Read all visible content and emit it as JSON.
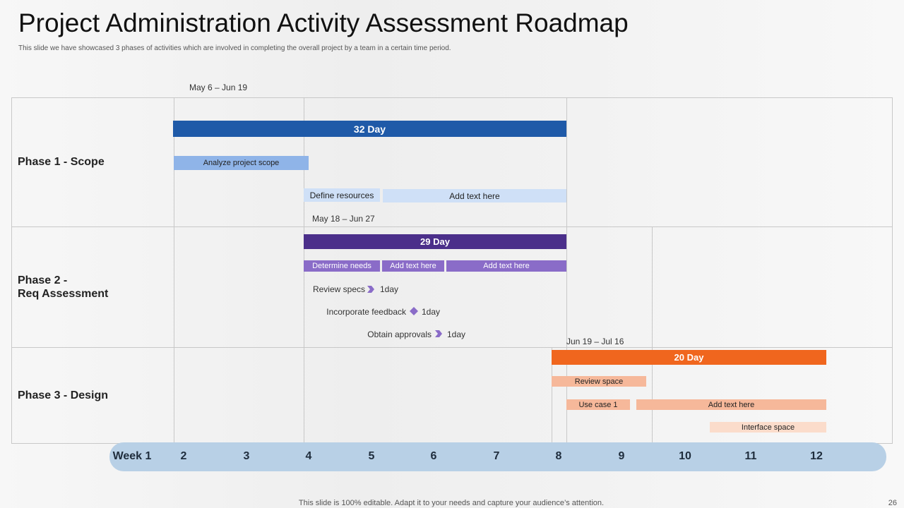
{
  "header": {
    "title": "Project Administration Activity Assessment Roadmap",
    "subtitle": "This slide we have showcased 3 phases of activities which are involved in completing the overall project by a team in a certain time period."
  },
  "phases": [
    {
      "label": [
        "Phase 1 - Scope"
      ],
      "date_range": "May 6 – Jun 19",
      "duration": "32 Day",
      "tasks": [
        "Analyze project scope",
        "Define resources",
        "Add text here"
      ]
    },
    {
      "label": [
        "Phase 2 -",
        "Req Assessment"
      ],
      "date_range": "May 18 – Jun 27",
      "duration": "29 Day",
      "tasks": [
        "Determine needs",
        "Add text here",
        "Add text here"
      ],
      "milestones": [
        {
          "label": "Review specs",
          "duration": "1day"
        },
        {
          "label": "Incorporate feedback",
          "duration": "1day"
        },
        {
          "label": "Obtain approvals",
          "duration": "1day"
        }
      ]
    },
    {
      "label": [
        "Phase 3 - Design"
      ],
      "date_range": "Jun 19 – Jul 16",
      "duration": "20 Day",
      "tasks": [
        "Review space",
        "Use case 1",
        "Add text here",
        "Interface space"
      ]
    }
  ],
  "timeline": {
    "weeks": [
      "Week 1",
      "2",
      "3",
      "4",
      "5",
      "6",
      "7",
      "8",
      "9",
      "10",
      "11",
      "12"
    ]
  },
  "footer": {
    "note": "This slide is 100% editable. Adapt it to your needs and capture your audience’s attention.",
    "page": "26"
  }
}
